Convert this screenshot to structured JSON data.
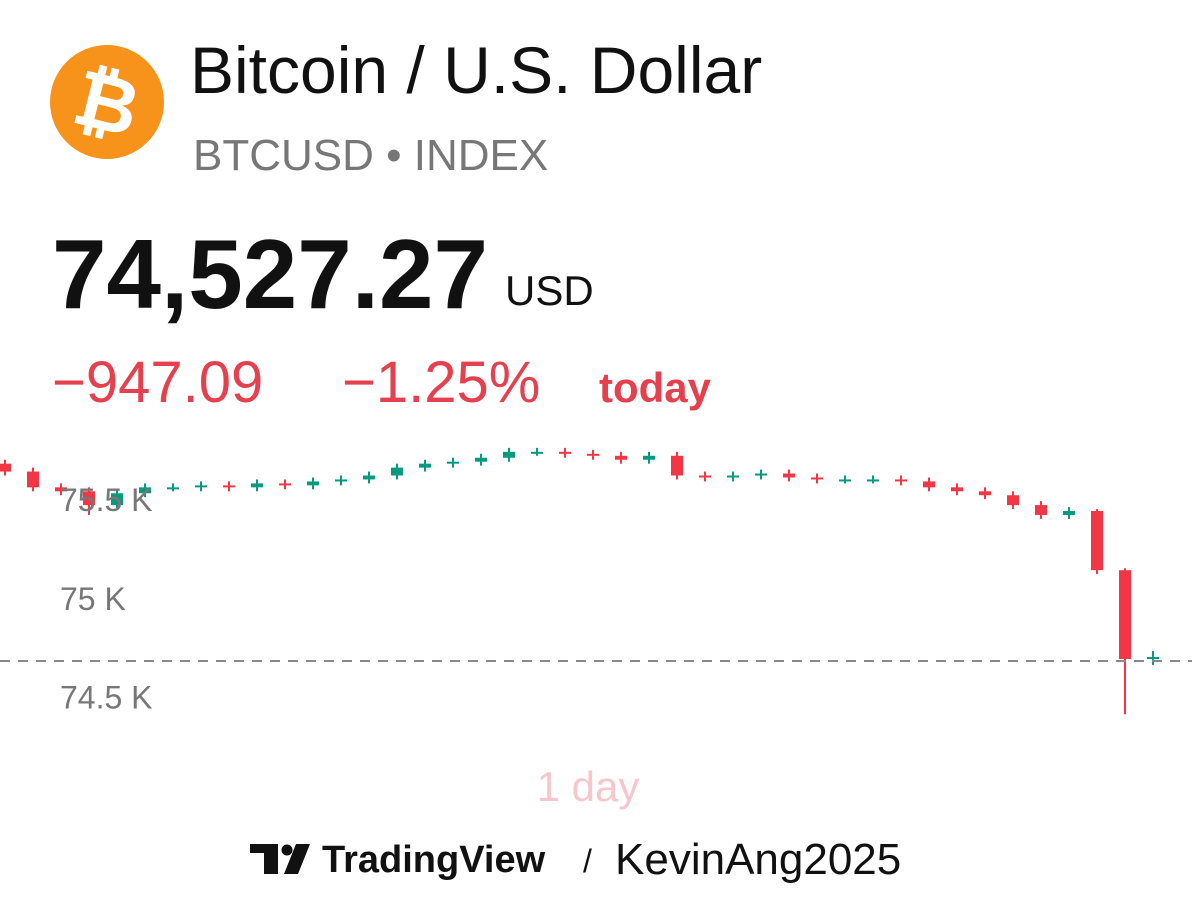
{
  "header": {
    "logo_symbol": "₿",
    "title": "Bitcoin / U.S. Dollar",
    "subtitle": "BTCUSD • INDEX",
    "price": "74,527.27",
    "currency": "USD",
    "change": "−947.09",
    "change_percent": "−1.25%",
    "period": "today"
  },
  "chart_data": {
    "type": "candlestick",
    "open": [
      75680,
      75640,
      75560,
      75540,
      75470,
      75530,
      75560,
      75560,
      75570,
      75560,
      75580,
      75570,
      75590,
      75600,
      75620,
      75660,
      75680,
      75690,
      75710,
      75740,
      75740,
      75730,
      75720,
      75700,
      75720,
      75620,
      75610,
      75620,
      75630,
      75610,
      75600,
      75600,
      75600,
      75590,
      75560,
      75540,
      75520,
      75470,
      75420,
      75440,
      75140,
      74690
    ],
    "high": [
      75700,
      75660,
      75580,
      75560,
      75550,
      75580,
      75580,
      75590,
      75590,
      75600,
      75600,
      75610,
      75620,
      75640,
      75680,
      75700,
      75710,
      75730,
      75760,
      75760,
      75760,
      75750,
      75740,
      75740,
      75740,
      75640,
      75640,
      75650,
      75650,
      75630,
      75620,
      75620,
      75620,
      75610,
      75580,
      75560,
      75540,
      75490,
      75460,
      75450,
      75150,
      74730
    ],
    "low": [
      75620,
      75540,
      75520,
      75420,
      75450,
      75510,
      75540,
      75540,
      75540,
      75540,
      75550,
      75550,
      75570,
      75580,
      75600,
      75640,
      75660,
      75670,
      75690,
      75720,
      75710,
      75700,
      75680,
      75680,
      75600,
      75590,
      75590,
      75600,
      75590,
      75580,
      75580,
      75580,
      75570,
      75540,
      75520,
      75500,
      75450,
      75400,
      75400,
      75120,
      74410,
      74660
    ],
    "close": [
      75640,
      75560,
      75540,
      75470,
      75530,
      75560,
      75560,
      75570,
      75560,
      75580,
      75570,
      75590,
      75600,
      75620,
      75660,
      75680,
      75690,
      75710,
      75740,
      75740,
      75730,
      75720,
      75700,
      75720,
      75620,
      75610,
      75620,
      75630,
      75610,
      75600,
      75600,
      75600,
      75590,
      75560,
      75540,
      75520,
      75470,
      75420,
      75440,
      75140,
      74690,
      74700
    ],
    "up_color": "#089981",
    "down_color": "#f23645",
    "ylim": [
      74330,
      75800
    ],
    "yticks": [
      {
        "value": 74500,
        "label": "74.5 K"
      },
      {
        "value": 75000,
        "label": "75 K"
      },
      {
        "value": 75500,
        "label": "75.5 K"
      }
    ],
    "price_line": 74680,
    "range_label": "1 day"
  },
  "footer": {
    "brand": "TradingView",
    "separator": "/",
    "author": "KevinAng2025"
  }
}
